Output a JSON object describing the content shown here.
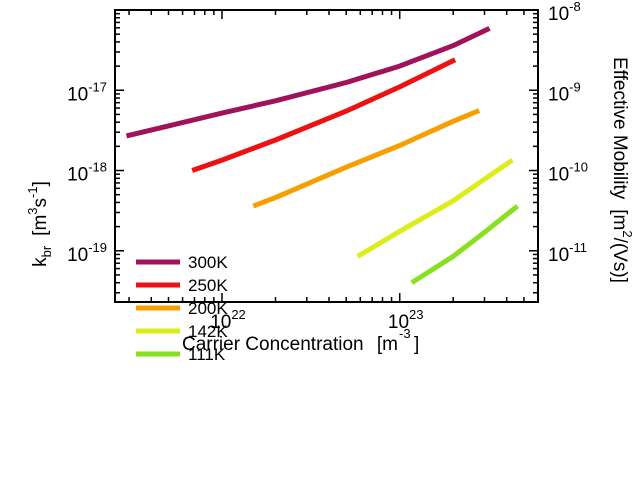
{
  "chart_data": {
    "type": "line",
    "title": "",
    "xlabel": {
      "main": "Carrier Concentration",
      "unit_open": "[m",
      "unit_sup": "-3",
      "unit_close": "]"
    },
    "ylabel_left": {
      "main": "k",
      "sub": "br",
      "unit_open": "[m",
      "sup1": "3",
      "mid": "s",
      "sup2": "-1",
      "unit_close": "]"
    },
    "ylabel_right": {
      "main": "Effective Mobility",
      "unit_open": "[m",
      "sup": "2",
      "unit_close": "/(Vs)]"
    },
    "x_scale": "log",
    "y_scale": "log",
    "xlim": [
      2.5e+21,
      6e+23
    ],
    "ylim": [
      2.3e-20,
      1e-16
    ],
    "y2lim": [
      2.3e-12,
      1e-08
    ],
    "grid": false,
    "legend_position": "bottom-left",
    "x_ticks": [
      {
        "value": 1e+22,
        "base": "10",
        "exp": "22"
      },
      {
        "value": 1e+23,
        "base": "10",
        "exp": "23"
      }
    ],
    "y_ticks": [
      {
        "value": 1e-19,
        "base": "10",
        "exp": "-19"
      },
      {
        "value": 1e-18,
        "base": "10",
        "exp": "-18"
      },
      {
        "value": 1e-17,
        "base": "10",
        "exp": "-17"
      }
    ],
    "y2_ticks": [
      {
        "value": 1e-11,
        "base": "10",
        "exp": "-11"
      },
      {
        "value": 1e-10,
        "base": "10",
        "exp": "-10"
      },
      {
        "value": 1e-09,
        "base": "10",
        "exp": "-9"
      },
      {
        "value": 1e-08,
        "base": "10",
        "exp": "-8"
      }
    ],
    "series": [
      {
        "name": "300K",
        "color": "#a0125a",
        "x": [
          2.9e+21,
          5e+21,
          1e+22,
          2e+22,
          5e+22,
          1e+23,
          2e+23,
          3.2e+23
        ],
        "y": [
          2.7e-18,
          3.6e-18,
          5.2e-18,
          7.4e-18,
          1.25e-17,
          2e-17,
          3.6e-17,
          5.9e-17
        ]
      },
      {
        "name": "250K",
        "color": "#ee1111",
        "x": [
          6.8e+21,
          1e+22,
          2e+22,
          5e+22,
          1e+23,
          2.05e+23
        ],
        "y": [
          1e-18,
          1.35e-18,
          2.4e-18,
          5.5e-18,
          1.1e-17,
          2.4e-17
        ]
      },
      {
        "name": "200K",
        "color": "#f5a000",
        "x": [
          1.5e+22,
          2e+22,
          5e+22,
          1e+23,
          2e+23,
          2.8e+23
        ],
        "y": [
          3.6e-19,
          4.6e-19,
          1.1e-18,
          2.05e-18,
          4.1e-18,
          5.6e-18
        ]
      },
      {
        "name": "142K",
        "color": "#dcee1a",
        "x": [
          5.8e+22,
          1e+23,
          2e+23,
          3e+23,
          4.3e+23
        ],
        "y": [
          8.5e-20,
          1.75e-19,
          4.2e-19,
          7.8e-19,
          1.35e-18
        ]
      },
      {
        "name": "111K",
        "color": "#88e01e",
        "x": [
          1.17e+23,
          2e+23,
          3e+23,
          4.6e+23
        ],
        "y": [
          4e-20,
          8.5e-20,
          1.7e-19,
          3.6e-19
        ]
      }
    ]
  }
}
